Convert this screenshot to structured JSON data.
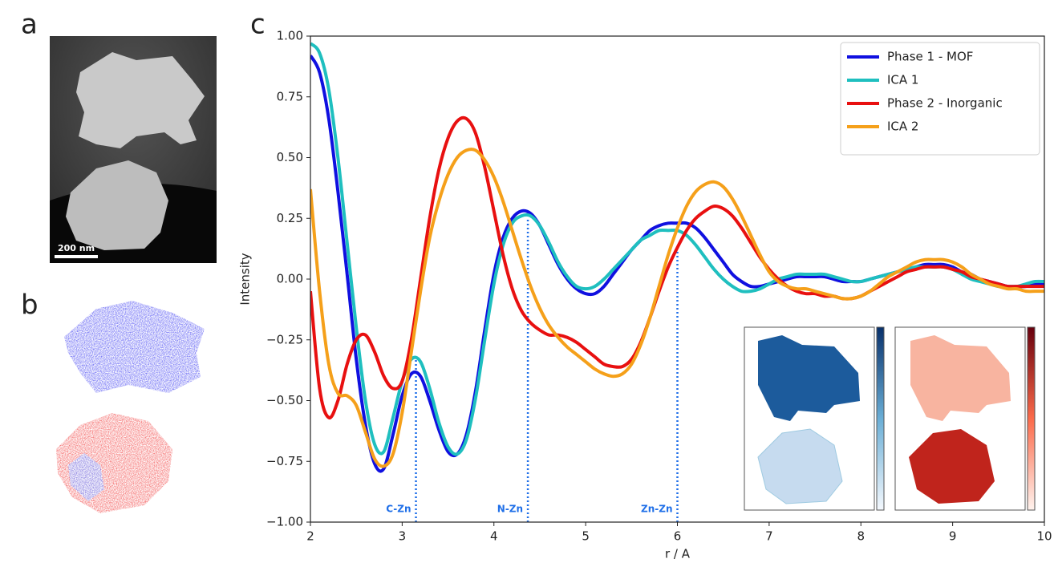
{
  "panel_labels": [
    "a",
    "b",
    "c"
  ],
  "scale_bar": "200 nm",
  "chart_data": {
    "type": "line",
    "xlabel": "r / A",
    "ylabel": "Intensity",
    "xlim": [
      2,
      10
    ],
    "ylim": [
      -1,
      1
    ],
    "xticks": [
      2,
      3,
      4,
      5,
      6,
      7,
      8,
      9,
      10
    ],
    "yticks": [
      {
        "value": -1,
        "label": "−1.00"
      },
      {
        "value": -0.75,
        "label": "−0.75"
      },
      {
        "value": -0.5,
        "label": "−0.50"
      },
      {
        "value": -0.25,
        "label": "−0.25"
      },
      {
        "value": 0,
        "label": "0.00"
      },
      {
        "value": 0.25,
        "label": "0.25"
      },
      {
        "value": 0.5,
        "label": "0.50"
      },
      {
        "value": 0.75,
        "label": "0.75"
      },
      {
        "value": 1,
        "label": "1.00"
      }
    ],
    "legend": "upper right",
    "x": [
      2.0,
      2.1,
      2.2,
      2.3,
      2.4,
      2.5,
      2.6,
      2.7,
      2.8,
      2.9,
      3.0,
      3.1,
      3.2,
      3.3,
      3.4,
      3.5,
      3.6,
      3.7,
      3.8,
      3.9,
      4.0,
      4.1,
      4.2,
      4.3,
      4.4,
      4.5,
      4.6,
      4.7,
      4.8,
      4.9,
      5.0,
      5.1,
      5.2,
      5.3,
      5.4,
      5.5,
      5.6,
      5.7,
      5.8,
      5.9,
      6.0,
      6.1,
      6.2,
      6.3,
      6.4,
      6.5,
      6.6,
      6.7,
      6.8,
      6.9,
      7.0,
      7.1,
      7.2,
      7.3,
      7.4,
      7.5,
      7.6,
      7.7,
      7.8,
      7.9,
      8.0,
      8.1,
      8.2,
      8.3,
      8.4,
      8.5,
      8.6,
      8.7,
      8.8,
      8.9,
      9.0,
      9.1,
      9.2,
      9.3,
      9.4,
      9.5,
      9.6,
      9.7,
      9.8,
      9.9,
      10.0
    ],
    "series": [
      {
        "name": "Phase 1 - MOF",
        "color": "#1010e0",
        "values": [
          0.92,
          0.85,
          0.66,
          0.36,
          0.02,
          -0.33,
          -0.6,
          -0.76,
          -0.78,
          -0.64,
          -0.48,
          -0.39,
          -0.4,
          -0.5,
          -0.62,
          -0.71,
          -0.72,
          -0.64,
          -0.46,
          -0.21,
          0.02,
          0.17,
          0.25,
          0.28,
          0.27,
          0.22,
          0.14,
          0.06,
          0.0,
          -0.04,
          -0.06,
          -0.06,
          -0.03,
          0.02,
          0.07,
          0.12,
          0.16,
          0.2,
          0.22,
          0.23,
          0.23,
          0.23,
          0.21,
          0.17,
          0.12,
          0.07,
          0.02,
          -0.01,
          -0.03,
          -0.03,
          -0.02,
          -0.01,
          0.0,
          0.01,
          0.01,
          0.01,
          0.01,
          0.0,
          -0.01,
          -0.01,
          -0.01,
          0.0,
          0.01,
          0.02,
          0.03,
          0.04,
          0.05,
          0.06,
          0.06,
          0.06,
          0.05,
          0.03,
          0.02,
          0.0,
          -0.01,
          -0.02,
          -0.03,
          -0.03,
          -0.03,
          -0.02,
          -0.02
        ]
      },
      {
        "name": "ICA 1",
        "color": "#1fbfbf",
        "values": [
          0.97,
          0.93,
          0.78,
          0.5,
          0.15,
          -0.2,
          -0.5,
          -0.68,
          -0.71,
          -0.57,
          -0.42,
          -0.33,
          -0.34,
          -0.45,
          -0.59,
          -0.69,
          -0.72,
          -0.66,
          -0.49,
          -0.25,
          -0.02,
          0.14,
          0.23,
          0.26,
          0.26,
          0.22,
          0.15,
          0.07,
          0.01,
          -0.03,
          -0.04,
          -0.03,
          0.0,
          0.04,
          0.08,
          0.12,
          0.16,
          0.18,
          0.2,
          0.2,
          0.2,
          0.18,
          0.14,
          0.09,
          0.04,
          0.0,
          -0.03,
          -0.05,
          -0.05,
          -0.04,
          -0.02,
          0.0,
          0.01,
          0.02,
          0.02,
          0.02,
          0.02,
          0.01,
          0.0,
          -0.01,
          -0.01,
          0.0,
          0.01,
          0.02,
          0.03,
          0.04,
          0.05,
          0.05,
          0.05,
          0.05,
          0.04,
          0.02,
          0.0,
          -0.01,
          -0.02,
          -0.03,
          -0.03,
          -0.03,
          -0.02,
          -0.01,
          -0.01
        ]
      },
      {
        "name": "Phase 2 - Inorganic",
        "color": "#e81010",
        "values": [
          -0.05,
          -0.45,
          -0.57,
          -0.5,
          -0.35,
          -0.25,
          -0.23,
          -0.3,
          -0.4,
          -0.45,
          -0.42,
          -0.25,
          0.0,
          0.25,
          0.45,
          0.58,
          0.65,
          0.66,
          0.6,
          0.46,
          0.28,
          0.1,
          -0.04,
          -0.13,
          -0.18,
          -0.21,
          -0.23,
          -0.23,
          -0.24,
          -0.26,
          -0.29,
          -0.32,
          -0.35,
          -0.36,
          -0.36,
          -0.33,
          -0.26,
          -0.16,
          -0.05,
          0.05,
          0.13,
          0.2,
          0.25,
          0.28,
          0.3,
          0.29,
          0.26,
          0.21,
          0.15,
          0.09,
          0.04,
          0.0,
          -0.03,
          -0.05,
          -0.06,
          -0.06,
          -0.07,
          -0.07,
          -0.08,
          -0.08,
          -0.07,
          -0.05,
          -0.03,
          -0.01,
          0.01,
          0.03,
          0.04,
          0.05,
          0.05,
          0.05,
          0.04,
          0.03,
          0.01,
          0.0,
          -0.01,
          -0.02,
          -0.03,
          -0.03,
          -0.03,
          -0.03,
          -0.03
        ]
      },
      {
        "name": "ICA 2",
        "color": "#f5a01a",
        "values": [
          0.37,
          -0.05,
          -0.35,
          -0.47,
          -0.48,
          -0.52,
          -0.63,
          -0.74,
          -0.77,
          -0.72,
          -0.55,
          -0.3,
          -0.05,
          0.17,
          0.32,
          0.43,
          0.5,
          0.53,
          0.53,
          0.49,
          0.42,
          0.32,
          0.2,
          0.08,
          -0.03,
          -0.12,
          -0.19,
          -0.24,
          -0.28,
          -0.31,
          -0.34,
          -0.37,
          -0.39,
          -0.4,
          -0.39,
          -0.35,
          -0.27,
          -0.16,
          -0.03,
          0.1,
          0.21,
          0.3,
          0.36,
          0.39,
          0.4,
          0.38,
          0.33,
          0.26,
          0.18,
          0.1,
          0.03,
          -0.01,
          -0.03,
          -0.04,
          -0.04,
          -0.05,
          -0.06,
          -0.07,
          -0.08,
          -0.08,
          -0.07,
          -0.05,
          -0.02,
          0.01,
          0.03,
          0.05,
          0.07,
          0.08,
          0.08,
          0.08,
          0.07,
          0.05,
          0.02,
          0.0,
          -0.02,
          -0.03,
          -0.04,
          -0.04,
          -0.05,
          -0.05,
          -0.05
        ]
      }
    ],
    "annotations": [
      {
        "label": "C-Zn",
        "x": 3.15,
        "y_top": -0.33,
        "color": "#1f6fe8"
      },
      {
        "label": "N-Zn",
        "x": 4.37,
        "y_top": 0.25,
        "color": "#1f6fe8"
      },
      {
        "label": "Zn-Zn",
        "x": 6.0,
        "y_top": 0.12,
        "color": "#1f6fe8"
      }
    ]
  }
}
